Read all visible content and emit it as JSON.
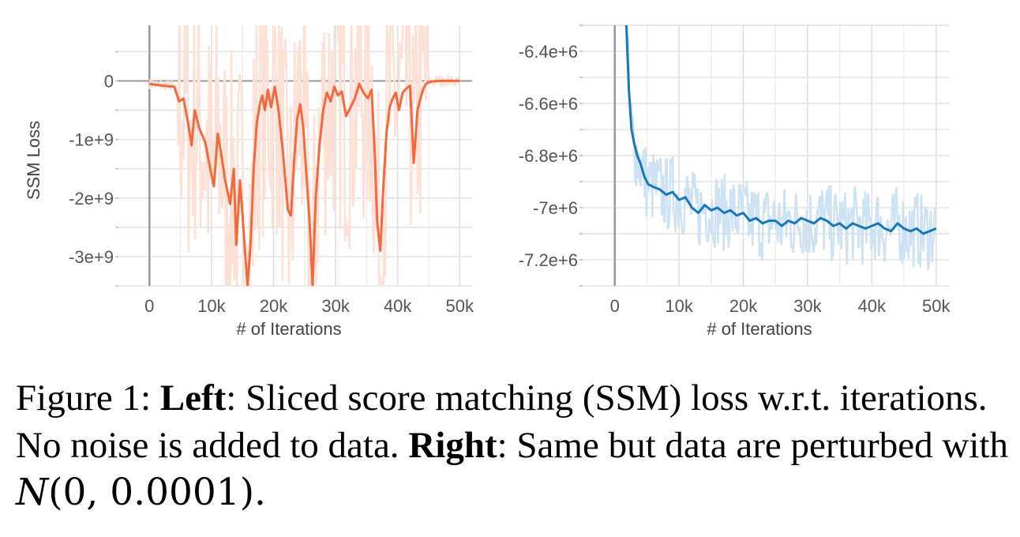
{
  "chart_data": [
    {
      "type": "line",
      "position": "left",
      "ylabel": "SSM Loss",
      "xlabel": "# of Iterations",
      "xlim": [
        -5000,
        52000
      ],
      "ylim": [
        -3500000000,
        950000000
      ],
      "xticks": [
        0,
        10000,
        20000,
        30000,
        40000,
        50000
      ],
      "xtick_labels": [
        "0",
        "10k",
        "20k",
        "30k",
        "40k",
        "50k"
      ],
      "yticks": [
        0,
        -1000000000,
        -2000000000,
        -3000000000
      ],
      "ytick_labels": [
        "0",
        "-1e+9",
        "-2e+9",
        "-3e+9"
      ],
      "grid": true,
      "colors": {
        "smoothed": "#f4693c",
        "raw": "#fde0d6"
      },
      "series": [
        {
          "x": [
            0,
            2000,
            4000,
            4800,
            5500,
            6200,
            6800,
            7300,
            8000,
            9000,
            9800,
            10400,
            11000,
            11500,
            12200,
            13000,
            13600,
            14000,
            14600,
            15200,
            15800,
            16300,
            16800,
            17300,
            17800,
            18200,
            18600,
            19100,
            19600,
            20200,
            20800,
            21500,
            22300,
            22800,
            23300,
            23800,
            24300,
            24800,
            25300,
            25800,
            26300,
            26800,
            27400,
            28000,
            28600,
            29200,
            29800,
            30400,
            31000,
            31700,
            32400,
            33100,
            33800,
            34500,
            35200,
            35800,
            36300,
            36700,
            37200,
            37700,
            38200,
            38700,
            39200,
            39700,
            40200,
            40800,
            41400,
            42000,
            42600,
            43200,
            43800,
            44200,
            44500,
            44900,
            45400,
            46000,
            46800,
            47800,
            49000,
            50000
          ],
          "y": [
            -50000000,
            -80000000,
            -100000000,
            -350000000,
            -300000000,
            -700000000,
            -1100000000,
            -500000000,
            -800000000,
            -1050000000,
            -1500000000,
            -1800000000,
            -900000000,
            -1200000000,
            -1700000000,
            -2100000000,
            -1500000000,
            -2800000000,
            -1700000000,
            -2600000000,
            -3500000000,
            -2800000000,
            -1500000000,
            -700000000,
            -400000000,
            -250000000,
            -500000000,
            -150000000,
            -450000000,
            -100000000,
            -500000000,
            -1200000000,
            -2200000000,
            -2300000000,
            -1400000000,
            -650000000,
            -400000000,
            -800000000,
            -1600000000,
            -2400000000,
            -3500000000,
            -2000000000,
            -1100000000,
            -500000000,
            -200000000,
            -350000000,
            -100000000,
            -250000000,
            -180000000,
            -600000000,
            -450000000,
            -300000000,
            -50000000,
            -200000000,
            -300000000,
            -150000000,
            -1200000000,
            -2400000000,
            -2900000000,
            -1800000000,
            -900000000,
            -450000000,
            -300000000,
            -200000000,
            -500000000,
            -200000000,
            -130000000,
            -80000000,
            -1400000000,
            -500000000,
            -250000000,
            -120000000,
            -60000000,
            -30000000,
            -10000000,
            -3000000,
            -1000000,
            0,
            0,
            0
          ]
        }
      ]
    },
    {
      "type": "line",
      "position": "right",
      "ylabel": "",
      "xlabel": "# of Iterations",
      "xlim": [
        -5000,
        52000
      ],
      "ylim": [
        -7300000,
        -6300000
      ],
      "xticks": [
        0,
        10000,
        20000,
        30000,
        40000,
        50000
      ],
      "xtick_labels": [
        "0",
        "10k",
        "20k",
        "30k",
        "40k",
        "50k"
      ],
      "yticks": [
        -6400000,
        -6600000,
        -6800000,
        -7000000,
        -7200000
      ],
      "ytick_labels": [
        "-6.4e+6",
        "-6.6e+6",
        "-6.8e+6",
        "-7e+6",
        "-7.2e+6"
      ],
      "grid": true,
      "colors": {
        "smoothed": "#1777b8",
        "raw": "#cde3f3"
      },
      "series": [
        {
          "x": [
            1800,
            2200,
            2600,
            3000,
            3500,
            4000,
            4600,
            5200,
            6000,
            7000,
            8000,
            9000,
            10000,
            11000,
            12000,
            13000,
            14000,
            15000,
            16000,
            17000,
            18000,
            19000,
            20000,
            21000,
            22000,
            23000,
            24000,
            25000,
            26000,
            27000,
            28000,
            29000,
            30000,
            31000,
            32000,
            33000,
            34000,
            35000,
            36000,
            37000,
            38000,
            39000,
            40000,
            41000,
            42000,
            43000,
            44000,
            45000,
            46000,
            47000,
            48000,
            49000,
            50000
          ],
          "y": [
            -6300000,
            -6550000,
            -6700000,
            -6750000,
            -6800000,
            -6830000,
            -6880000,
            -6910000,
            -6920000,
            -6930000,
            -6950000,
            -6940000,
            -6970000,
            -6960000,
            -7000000,
            -7020000,
            -6990000,
            -7010000,
            -7000000,
            -7020000,
            -7010000,
            -7030000,
            -7020000,
            -7050000,
            -7040000,
            -7060000,
            -7050000,
            -7050000,
            -7070000,
            -7050000,
            -7060000,
            -7040000,
            -7050000,
            -7060000,
            -7040000,
            -7050000,
            -7070000,
            -7060000,
            -7080000,
            -7060000,
            -7070000,
            -7080000,
            -7070000,
            -7060000,
            -7080000,
            -7090000,
            -7060000,
            -7080000,
            -7090000,
            -7080000,
            -7100000,
            -7090000,
            -7080000
          ]
        }
      ]
    }
  ],
  "caption": {
    "label": "Figure 1: ",
    "left_bold": "Left",
    "left_text": ": Sliced score matching (SSM) loss w.r.t. iterations. No noise is added to data. ",
    "right_bold": "Right",
    "right_text": ": Same but data are perturbed with ",
    "math": "(0, 0.0001).",
    "calN": "N"
  }
}
